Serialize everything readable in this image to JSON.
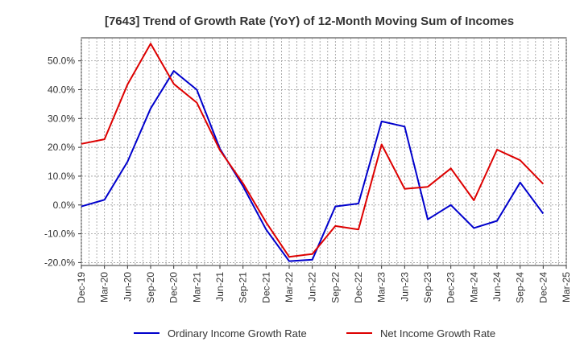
{
  "chart_data": {
    "type": "line",
    "title": "[7643]  Trend of Growth Rate (YoY) of 12-Month Moving Sum of Incomes",
    "xlabel": "",
    "ylabel": "",
    "x": [
      "Dec-19",
      "Mar-20",
      "Jun-20",
      "Sep-20",
      "Dec-20",
      "Mar-21",
      "Jun-21",
      "Sep-21",
      "Dec-21",
      "Mar-22",
      "Jun-22",
      "Sep-22",
      "Dec-22",
      "Mar-23",
      "Jun-23",
      "Sep-23",
      "Dec-23",
      "Mar-24",
      "Jun-24",
      "Sep-24",
      "Dec-24",
      "Mar-25"
    ],
    "ylim": [
      -21,
      58
    ],
    "y_ticks": [
      -20,
      -10,
      0,
      10,
      20,
      30,
      40,
      50
    ],
    "y_tick_labels": [
      "-20.0%",
      "-10.0%",
      "0.0%",
      "10.0%",
      "20.0%",
      "30.0%",
      "40.0%",
      "50.0%"
    ],
    "grid": true,
    "legend_position": "bottom",
    "series": [
      {
        "name": "Ordinary Income Growth Rate",
        "color": "#0000cc",
        "values": [
          -0.5,
          1.8,
          15.0,
          33.5,
          46.5,
          40.0,
          19.5,
          6.5,
          -8.5,
          -19.5,
          -19.0,
          -0.5,
          0.5,
          29.0,
          27.2,
          -5.0,
          0.0,
          -8.0,
          -5.5,
          7.8,
          -3.0,
          null
        ]
      },
      {
        "name": "Net Income Growth Rate",
        "color": "#dd0000",
        "values": [
          21.2,
          22.8,
          41.8,
          56.0,
          42.0,
          35.5,
          19.0,
          7.5,
          -6.0,
          -18.0,
          -17.0,
          -7.3,
          -8.5,
          21.0,
          5.6,
          6.3,
          12.7,
          1.6,
          19.2,
          15.5,
          7.3,
          null
        ]
      }
    ]
  }
}
